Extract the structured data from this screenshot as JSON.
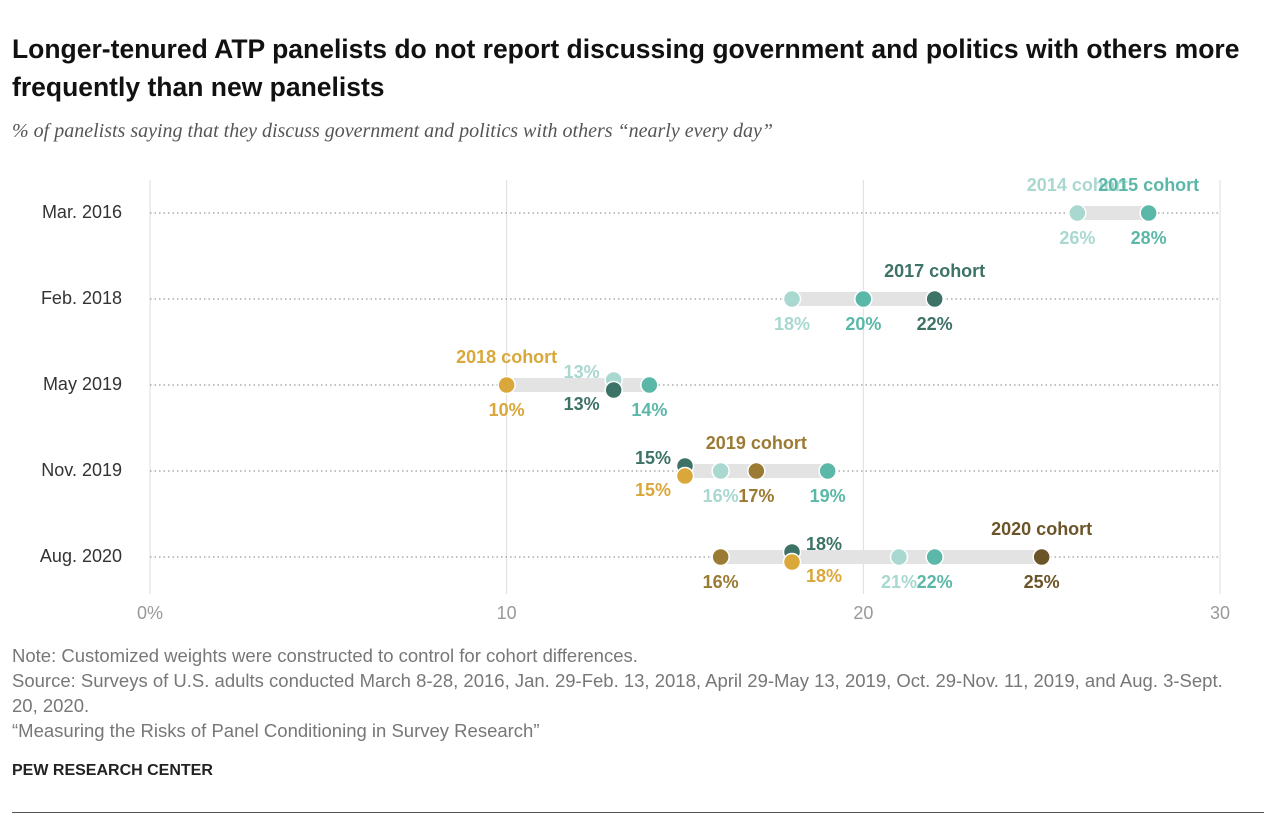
{
  "chart_data": {
    "type": "dot",
    "title": "Longer-tenured ATP panelists do not report discussing government and politics with others more frequently than new panelists",
    "subtitle": "% of panelists saying that they discuss government and politics with others “nearly every day”",
    "categories": [
      "Mar. 2016",
      "Feb. 2018",
      "May 2019",
      "Nov. 2019",
      "Aug. 2020"
    ],
    "series": [
      {
        "name": "2014 cohort",
        "color": "#a8d8cf",
        "values": [
          26,
          18,
          13,
          16,
          21
        ],
        "value_labels": [
          "26%",
          "18%",
          "13%",
          "16%",
          "21%"
        ]
      },
      {
        "name": "2015 cohort",
        "color": "#5bb8a8",
        "values": [
          28,
          20,
          14,
          19,
          22
        ],
        "value_labels": [
          "28%",
          "20%",
          "14%",
          "19%",
          "22%"
        ]
      },
      {
        "name": "2017 cohort",
        "color": "#3d7266",
        "values": [
          null,
          22,
          13,
          15,
          18
        ],
        "value_labels": [
          null,
          "22%",
          "13%",
          "15%",
          "18%"
        ]
      },
      {
        "name": "2018 cohort",
        "color": "#d9a73a",
        "values": [
          null,
          null,
          10,
          15,
          18
        ],
        "value_labels": [
          null,
          null,
          "10%",
          "15%",
          "18%"
        ]
      },
      {
        "name": "2019 cohort",
        "color": "#9b7a33",
        "values": [
          null,
          null,
          null,
          17,
          16
        ],
        "value_labels": [
          null,
          null,
          null,
          "17%",
          "16%"
        ]
      },
      {
        "name": "2020 cohort",
        "color": "#6b5428",
        "values": [
          null,
          null,
          null,
          null,
          25
        ],
        "value_labels": [
          null,
          null,
          null,
          null,
          "25%"
        ]
      }
    ],
    "xlim": [
      0,
      30
    ],
    "xticks": [
      {
        "value": 0,
        "label": "0%"
      },
      10,
      20,
      30
    ],
    "grid": true
  },
  "footer": {
    "note": "Note: Customized weights were constructed to control for cohort differences.",
    "source": "Source: Surveys of U.S. adults conducted March 8-28, 2016, Jan. 29-Feb. 13, 2018, April 29-May 13, 2019, Oct. 29-Nov. 11, 2019, and Aug. 3-Sept. 20, 2020.",
    "report": "“Measuring the Risks of Panel Conditioning in Survey Research”",
    "brand": "PEW RESEARCH CENTER"
  }
}
